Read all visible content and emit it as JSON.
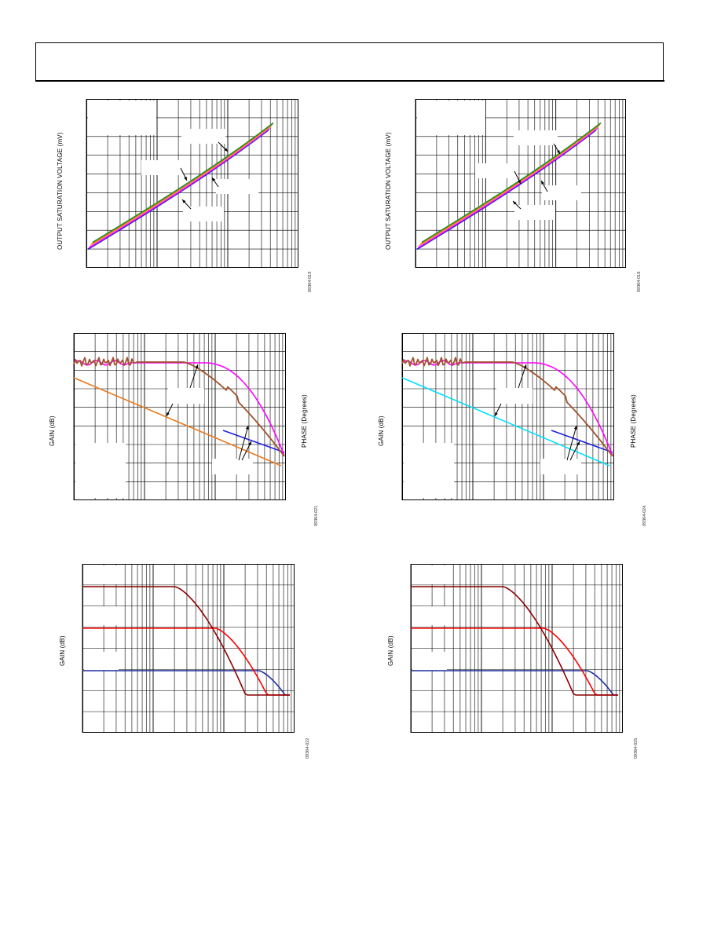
{
  "header": {
    "text": ""
  },
  "left_column": {
    "top_plot": {
      "ylabel": "OUTPUT SATURATION VOLTAGE (mV)",
      "fig_id": "09364-019"
    },
    "middle_plot": {
      "ylabel": "GAIN (dB)",
      "y2label": "PHASE (Degrees)",
      "fig_id": "09364-021"
    },
    "bottom_plot": {
      "ylabel": "GAIN (dB)",
      "fig_id": "09364-022"
    }
  },
  "right_column": {
    "top_plot": {
      "ylabel": "OUTPUT SATURATION VOLTAGE (mV)",
      "fig_id": "09364-018"
    },
    "middle_plot": {
      "ylabel": "GAIN (dB)",
      "y2label": "PHASE (Degrees)",
      "fig_id": "09364-024"
    },
    "bottom_plot": {
      "ylabel": "GAIN (dB)",
      "fig_id": "09364-025"
    }
  },
  "colors": {
    "green": "#2e8b2e",
    "orange": "#ff8c00",
    "magenta": "#ff00ff",
    "pink": "#ff69b4",
    "blue": "#1f1fe0",
    "brown": "#a0522d",
    "orange_phase": "#e87a1e",
    "cyan": "#00e0ff",
    "dark_red": "#8b0000",
    "red": "#ff0000",
    "navy": "#1f2e9e"
  }
}
